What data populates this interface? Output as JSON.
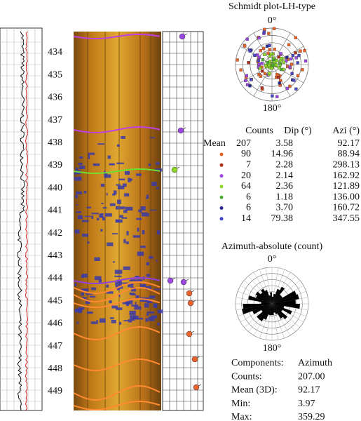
{
  "depth_labels": [
    "434",
    "435",
    "436",
    "437",
    "438",
    "439",
    "440",
    "441",
    "442",
    "443",
    "444",
    "445",
    "446",
    "447",
    "448",
    "449"
  ],
  "schmidt": {
    "title": "Schmidt plot-LH-type",
    "north": "0°",
    "south": "180°"
  },
  "table": {
    "headers": [
      "Counts",
      "Dip (°)",
      "Azi (°)"
    ],
    "mean": {
      "label": "Mean",
      "counts": "207",
      "dip": "3.58",
      "azi": "92.17"
    },
    "rows": [
      {
        "color": "#e8642a",
        "counts": "90",
        "dip": "14.96",
        "azi": "88.94"
      },
      {
        "color": "#b0301e",
        "counts": "7",
        "dip": "2.28",
        "azi": "298.13"
      },
      {
        "color": "#9a48e0",
        "counts": "20",
        "dip": "2.14",
        "azi": "162.92"
      },
      {
        "color": "#8ed82a",
        "counts": "64",
        "dip": "2.36",
        "azi": "121.89"
      },
      {
        "color": "#4fae34",
        "counts": "6",
        "dip": "1.18",
        "azi": "136.00"
      },
      {
        "color": "#2a2a90",
        "counts": "6",
        "dip": "3.70",
        "azi": "160.72"
      },
      {
        "color": "#4646c8",
        "counts": "14",
        "dip": "79.38",
        "azi": "347.55"
      }
    ]
  },
  "rose": {
    "title": "Azimuth-absolute (count)",
    "north": "0°",
    "south": "180°"
  },
  "stats": [
    {
      "label": "Components:",
      "value": "Azimuth"
    },
    {
      "label": "Counts:",
      "value": "207.00"
    },
    {
      "label": "Mean (3D):",
      "value": "92.17"
    },
    {
      "label": "Min:",
      "value": "3.97"
    },
    {
      "label": "Max:",
      "value": "359.29"
    }
  ]
}
